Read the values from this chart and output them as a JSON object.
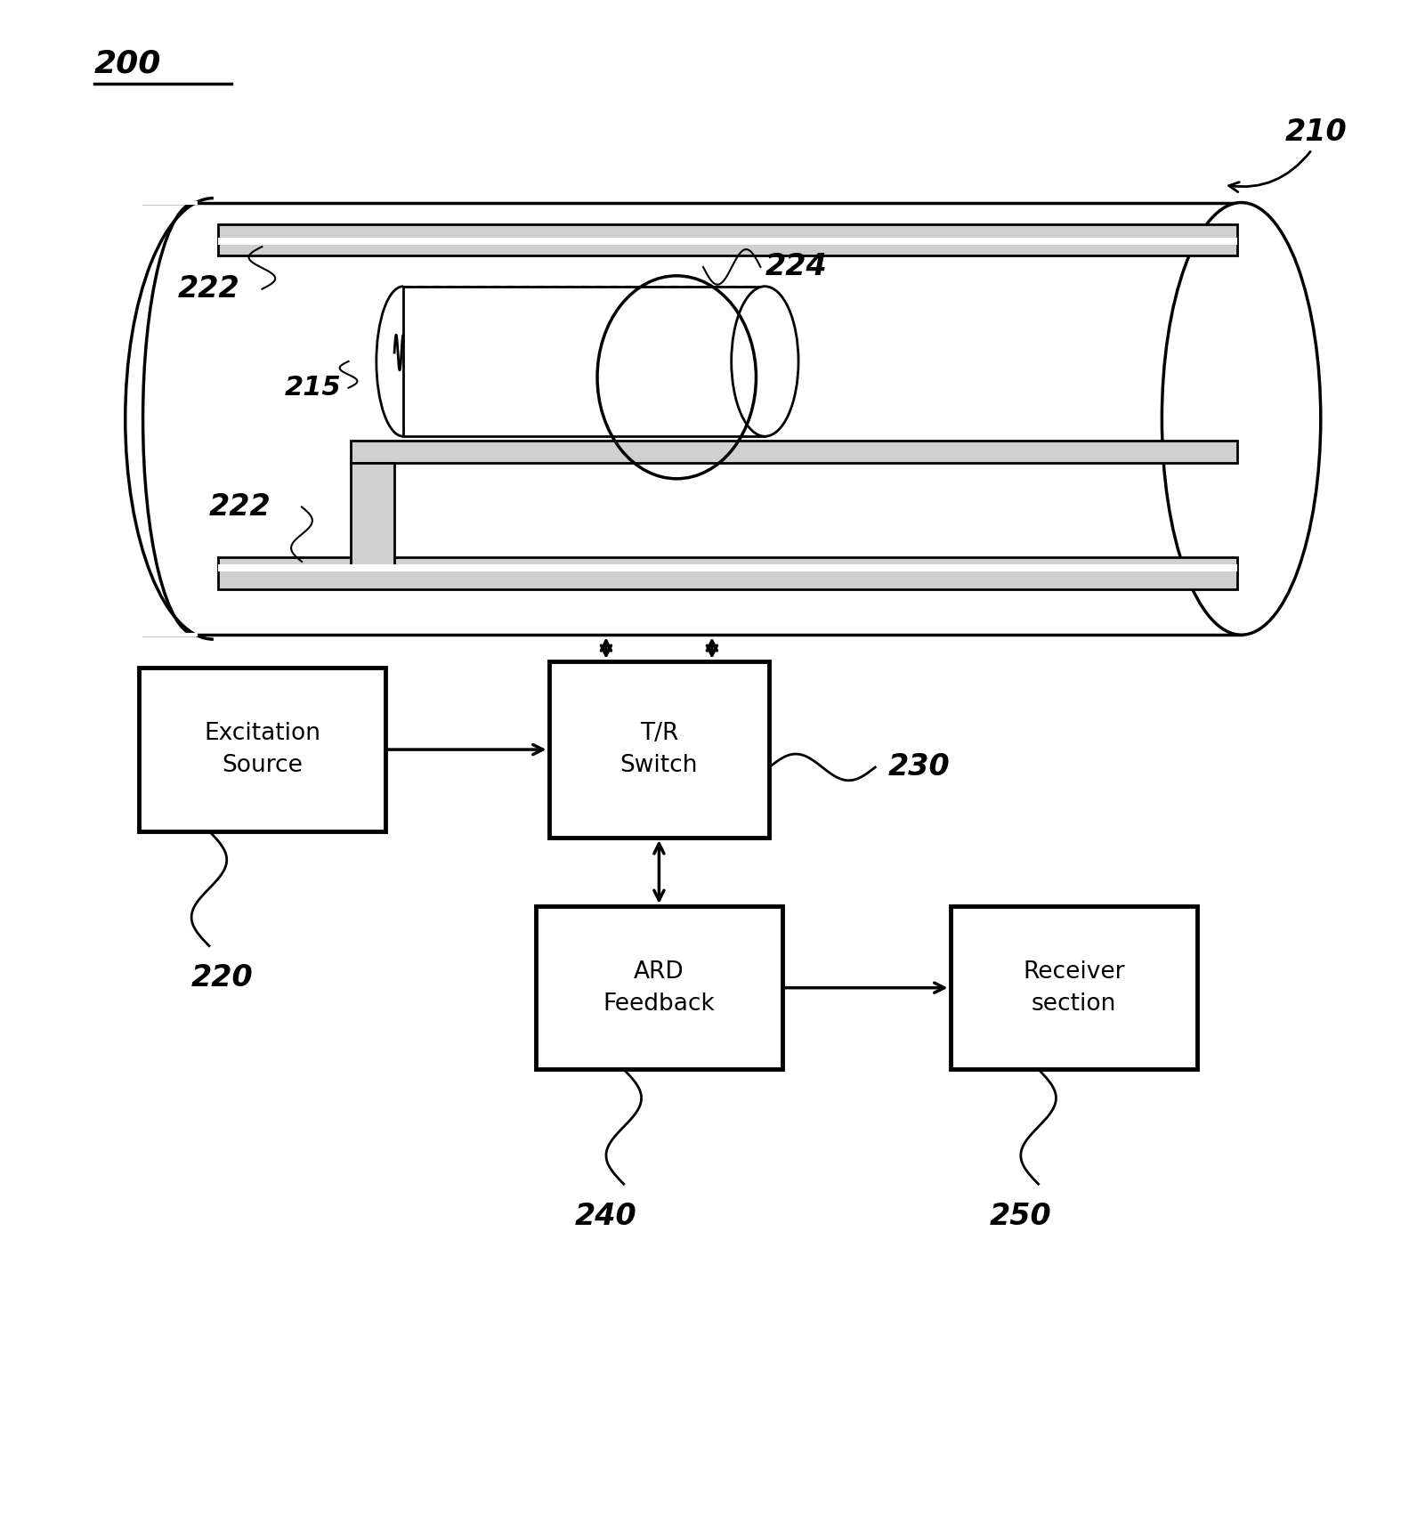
{
  "bg_color": "#ffffff",
  "fig_label": "200",
  "cylinder_label": "210",
  "label_222_top": "222",
  "label_222_bot": "222",
  "label_224": "224",
  "label_215": "215",
  "label_220": "220",
  "label_230": "230",
  "label_240": "240",
  "label_250": "250",
  "box_excitation": "Excitation\nSource",
  "box_tr": "T/R\nSwitch",
  "box_ard": "ARD\nFeedback",
  "box_receiver": "Receiver\nsection",
  "font_size_labels": 20,
  "font_size_box": 19,
  "font_size_fig_label": 26
}
